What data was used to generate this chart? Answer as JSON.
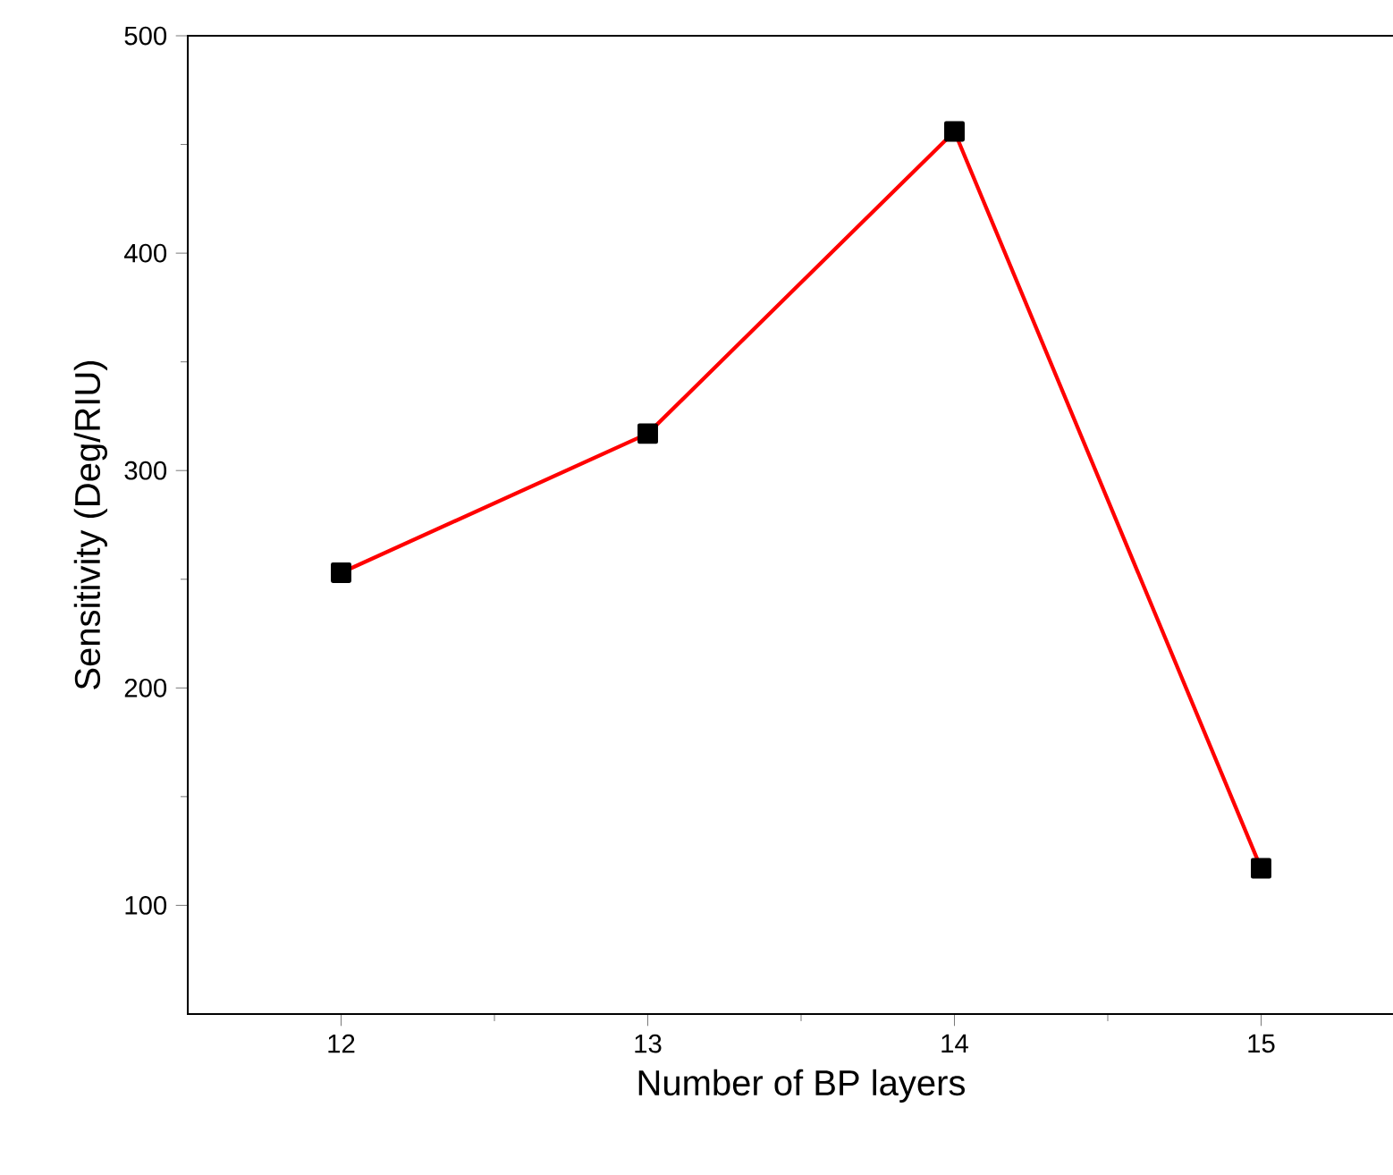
{
  "chart_data": {
    "type": "line",
    "xlabel": "Number of BP layers",
    "ylabel": "Sensitivity (Deg/RIU)",
    "x": [
      12,
      13,
      14,
      15
    ],
    "series": [
      {
        "color": "#ff0000",
        "values": [
          253,
          317,
          456,
          117
        ]
      }
    ],
    "xlim": [
      11.5,
      15.5
    ],
    "ylim": [
      50,
      500
    ],
    "xticks": [
      12,
      13,
      14,
      15
    ],
    "yticks": [
      100,
      200,
      300,
      400,
      500
    ],
    "marker": "square",
    "line_style": "solid",
    "grid": false
  }
}
